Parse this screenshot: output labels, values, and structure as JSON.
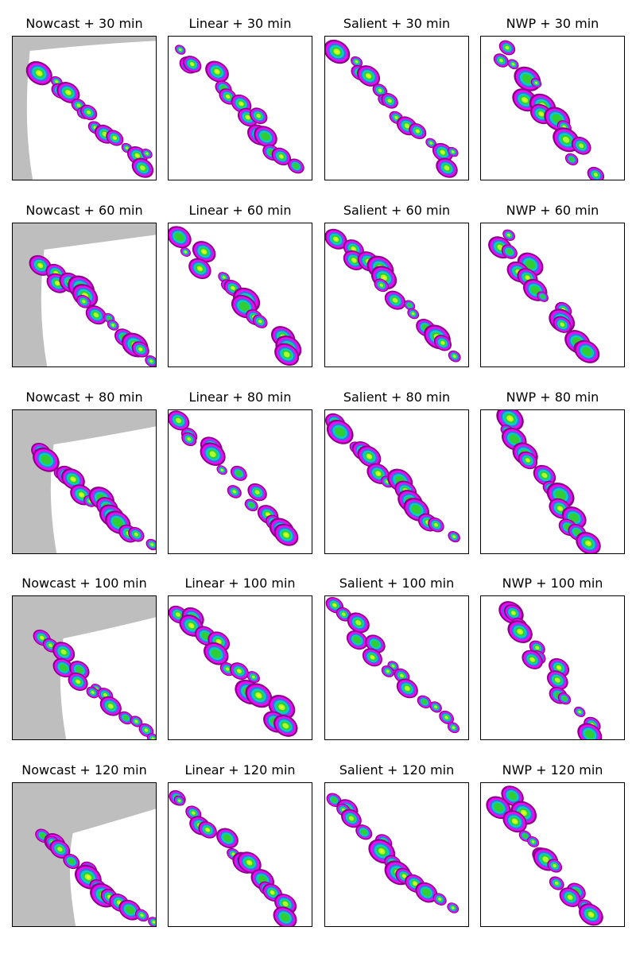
{
  "figure": {
    "row_labels": [
      "+ 30 min",
      "+ 60 min",
      "+ 80 min",
      "+ 100 min",
      "+ 120 min"
    ],
    "column_labels": [
      "Nowcast",
      "Linear",
      "Salient",
      "NWP"
    ]
  },
  "chart_data": {
    "type": "heatmap",
    "description_of_grid": "5 lead times x 4 methods of precipitation map panels",
    "lead_times_min": [
      30,
      60,
      80,
      100,
      120
    ],
    "methods": [
      "Nowcast",
      "Linear",
      "Salient",
      "NWP"
    ],
    "no_data_color": "#bebebe",
    "colormap": [
      "#8b008b",
      "#ff00ff",
      "#4169e1",
      "#00ced1",
      "#32cd32",
      "#adff2f",
      "#ffff00",
      "#ffa500",
      "#ff4500"
    ],
    "panels": [
      {
        "title": "Nowcast + 30 min",
        "method": "Nowcast",
        "lead": 30
      },
      {
        "title": "Linear + 30 min",
        "method": "Linear",
        "lead": 30
      },
      {
        "title": "Salient + 30 min",
        "method": "Salient",
        "lead": 30
      },
      {
        "title": "NWP + 30 min",
        "method": "NWP",
        "lead": 30
      },
      {
        "title": "Nowcast + 60 min",
        "method": "Nowcast",
        "lead": 60
      },
      {
        "title": "Linear + 60 min",
        "method": "Linear",
        "lead": 60
      },
      {
        "title": "Salient + 60 min",
        "method": "Salient",
        "lead": 60
      },
      {
        "title": "NWP + 60 min",
        "method": "NWP",
        "lead": 60
      },
      {
        "title": "Nowcast + 80 min",
        "method": "Nowcast",
        "lead": 80
      },
      {
        "title": "Linear + 80 min",
        "method": "Linear",
        "lead": 80
      },
      {
        "title": "Salient + 80 min",
        "method": "Salient",
        "lead": 80
      },
      {
        "title": "NWP + 80 min",
        "method": "NWP",
        "lead": 80
      },
      {
        "title": "Nowcast + 100 min",
        "method": "Nowcast",
        "lead": 100
      },
      {
        "title": "Linear + 100 min",
        "method": "Linear",
        "lead": 100
      },
      {
        "title": "Salient + 100 min",
        "method": "Salient",
        "lead": 100
      },
      {
        "title": "NWP + 100 min",
        "method": "NWP",
        "lead": 100
      },
      {
        "title": "Nowcast + 120 min",
        "method": "Nowcast",
        "lead": 120
      },
      {
        "title": "Linear + 120 min",
        "method": "Linear",
        "lead": 120
      },
      {
        "title": "Salient + 120 min",
        "method": "Salient",
        "lead": 120
      },
      {
        "title": "NWP + 120 min",
        "method": "NWP",
        "lead": 120
      }
    ]
  }
}
